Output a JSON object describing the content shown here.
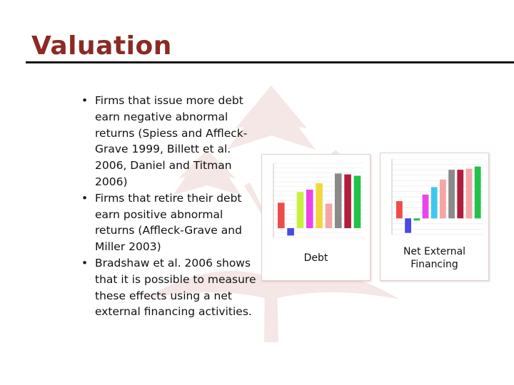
{
  "slide": {
    "title": "Valuation",
    "colors": {
      "title": "#8b2a24",
      "rule": "#111111",
      "watermark": "#f4e7e6"
    }
  },
  "bullets": [
    {
      "text": "Firms that issue more debt earn negative abnormal returns (Spiess and Affleck-Grave 1999, Billett et al. 2006, Daniel and Titman 2006)"
    },
    {
      "text": "Firms that retire their debt earn positive abnormal returns (Affleck-Grave and Miller 2003)"
    },
    {
      "text": "Bradshaw et al. 2006 shows that it is possible to measure these effects using a net external financing activities."
    }
  ],
  "charts": {
    "debt": {
      "caption": "Debt"
    },
    "nef": {
      "caption_line1": "Net External",
      "caption_line2": "Financing"
    }
  },
  "chart_data": [
    {
      "type": "bar",
      "title": "",
      "caption": "Debt",
      "ylim": [
        -2,
        14
      ],
      "grid": true,
      "values": [
        5.5,
        -1.6,
        7.8,
        8.3,
        9.7,
        5.3,
        11.8,
        11.6,
        11.3
      ],
      "colors": [
        "#ef4b4b",
        "#4a4ae0",
        "#c9f03c",
        "#ec44ec",
        "#f0d83c",
        "#f4a6a6",
        "#8a8a8a",
        "#b01e3c",
        "#22c24a"
      ]
    },
    {
      "type": "bar",
      "title": "",
      "caption": "Net External Financing",
      "ylim": [
        -3,
        11
      ],
      "grid": true,
      "values": [
        3.2,
        -2.7,
        -0.4,
        4.4,
        5.8,
        7.2,
        9.0,
        9.0,
        9.2,
        9.6
      ],
      "colors": [
        "#ef4b4b",
        "#4a4ae0",
        "#22c24a",
        "#ec44ec",
        "#3cc8f0",
        "#f4a6a6",
        "#8a8a8a",
        "#b01e3c",
        "#f4a6a6",
        "#22c24a"
      ]
    }
  ]
}
